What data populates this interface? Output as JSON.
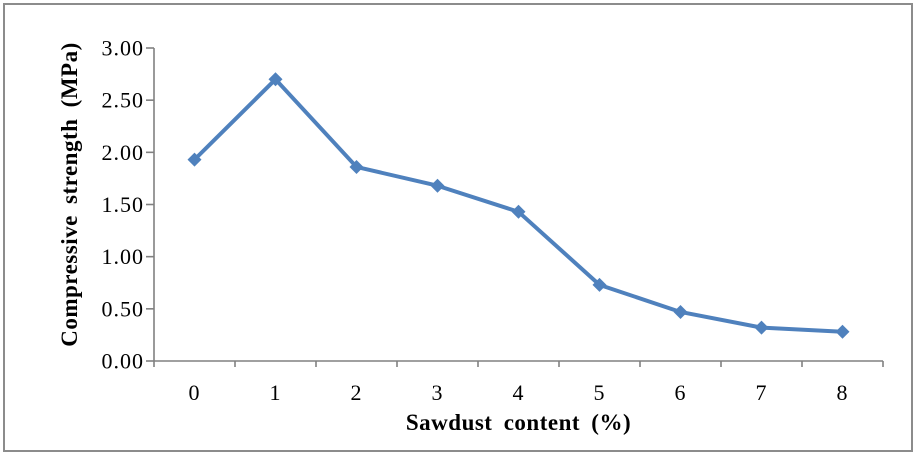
{
  "figure": {
    "background_color": "#ffffff",
    "border_color": "#8c8c8c"
  },
  "chart_data": {
    "type": "line",
    "title": "",
    "categories": [
      "0",
      "1",
      "2",
      "3",
      "4",
      "5",
      "6",
      "7",
      "8"
    ],
    "values": [
      1.93,
      2.7,
      1.86,
      1.68,
      1.43,
      0.73,
      0.47,
      0.32,
      0.28
    ],
    "xlabel": "Sawdust content (%)",
    "ylabel": "Compressive strength (MPa)",
    "ylim": [
      0,
      3
    ],
    "ytick_step": 0.5,
    "ytick_labels": [
      "0.00",
      "0.50",
      "1.00",
      "1.50",
      "2.00",
      "2.50",
      "3.00"
    ],
    "grid": false,
    "legend": "none",
    "line_color": "#4F81BD",
    "marker": "diamond",
    "marker_color": "#4F81BD",
    "axis_color": "#808080",
    "text_color": "#000000"
  }
}
